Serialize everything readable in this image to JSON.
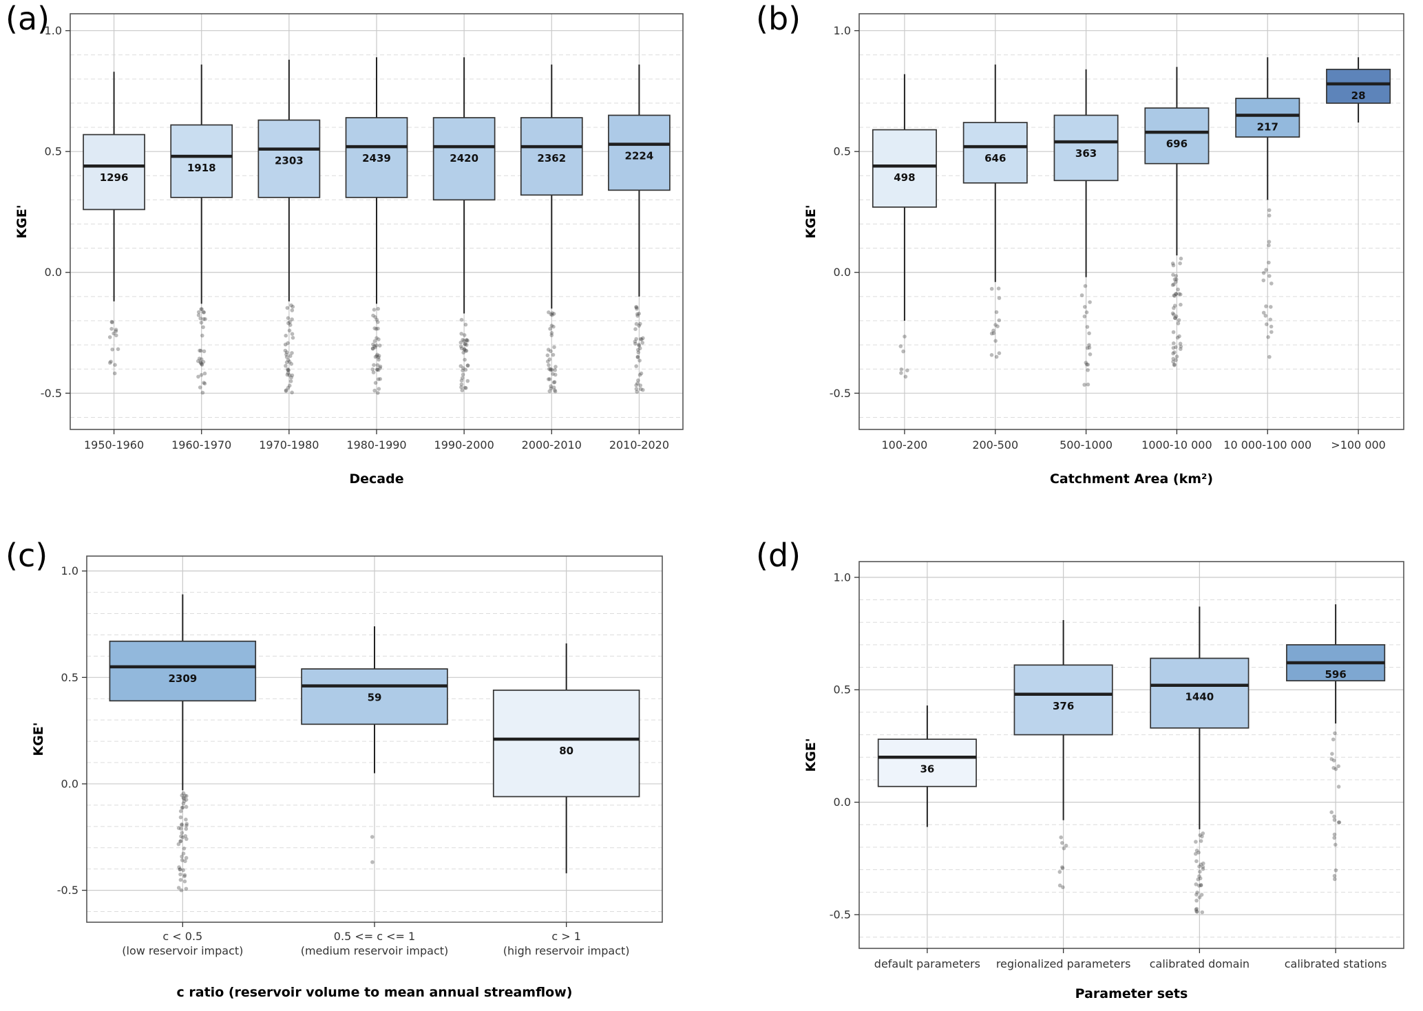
{
  "figure_background": "#ffffff",
  "chart_data": {
    "type": "boxplot",
    "shared": {
      "ylabel": "KGE'",
      "yticks": [
        -0.5,
        0.0,
        0.5,
        1.0
      ],
      "ylim": [
        -0.65,
        1.07
      ],
      "grid": "horizontal major solid, minor dashed, vertical solid per category",
      "legend": "none",
      "count_label_note": "number of stations printed below each median line"
    },
    "panels": [
      {
        "label": "(a)",
        "xlabel": "Decade",
        "ylabel": "KGE'",
        "categories": [
          "1950-1960",
          "1960-1970",
          "1970-1980",
          "1980-1990",
          "1990-2000",
          "2000-2010",
          "2010-2020"
        ],
        "boxes": [
          {
            "n": 1296,
            "q1": 0.26,
            "median": 0.44,
            "q3": 0.57,
            "whisker_low": -0.12,
            "whisker_high": 0.83,
            "fill": "#dfeaf5",
            "outliers": {
              "min": -0.44,
              "max": -0.18,
              "count": 14
            }
          },
          {
            "n": 1918,
            "q1": 0.31,
            "median": 0.48,
            "q3": 0.61,
            "whisker_low": -0.13,
            "whisker_high": 0.86,
            "fill": "#c9ddf0",
            "outliers": {
              "min": -0.5,
              "max": -0.15,
              "count": 30
            }
          },
          {
            "n": 2303,
            "q1": 0.31,
            "median": 0.51,
            "q3": 0.63,
            "whisker_low": -0.12,
            "whisker_high": 0.88,
            "fill": "#bcd4ec",
            "outliers": {
              "min": -0.5,
              "max": -0.13,
              "count": 40
            }
          },
          {
            "n": 2439,
            "q1": 0.31,
            "median": 0.52,
            "q3": 0.64,
            "whisker_low": -0.13,
            "whisker_high": 0.89,
            "fill": "#b4cfe9",
            "outliers": {
              "min": -0.5,
              "max": -0.15,
              "count": 40
            }
          },
          {
            "n": 2420,
            "q1": 0.3,
            "median": 0.52,
            "q3": 0.64,
            "whisker_low": -0.17,
            "whisker_high": 0.89,
            "fill": "#b4cfe9",
            "outliers": {
              "min": -0.5,
              "max": -0.18,
              "count": 36
            }
          },
          {
            "n": 2362,
            "q1": 0.32,
            "median": 0.52,
            "q3": 0.64,
            "whisker_low": -0.15,
            "whisker_high": 0.86,
            "fill": "#b2cde8",
            "outliers": {
              "min": -0.5,
              "max": -0.16,
              "count": 36
            }
          },
          {
            "n": 2224,
            "q1": 0.34,
            "median": 0.53,
            "q3": 0.65,
            "whisker_low": -0.1,
            "whisker_high": 0.86,
            "fill": "#adcae7",
            "outliers": {
              "min": -0.5,
              "max": -0.12,
              "count": 36
            }
          }
        ]
      },
      {
        "label": "(b)",
        "xlabel": "Catchment Area (km²)",
        "ylabel": "KGE'",
        "categories": [
          "100-200",
          "200-500",
          "500-1000",
          "1000-10 000",
          "10 000-100 000",
          ">100 000"
        ],
        "boxes": [
          {
            "n": 498,
            "q1": 0.27,
            "median": 0.44,
            "q3": 0.59,
            "whisker_low": -0.2,
            "whisker_high": 0.82,
            "fill": "#e2edf7",
            "outliers": {
              "min": -0.45,
              "max": -0.24,
              "count": 7
            }
          },
          {
            "n": 646,
            "q1": 0.37,
            "median": 0.52,
            "q3": 0.62,
            "whisker_low": -0.04,
            "whisker_high": 0.86,
            "fill": "#cadef1",
            "outliers": {
              "min": -0.38,
              "max": -0.06,
              "count": 14
            }
          },
          {
            "n": 363,
            "q1": 0.38,
            "median": 0.54,
            "q3": 0.65,
            "whisker_low": -0.02,
            "whisker_high": 0.84,
            "fill": "#bed6ed",
            "outliers": {
              "min": -0.47,
              "max": -0.05,
              "count": 18
            }
          },
          {
            "n": 696,
            "q1": 0.45,
            "median": 0.58,
            "q3": 0.68,
            "whisker_low": 0.07,
            "whisker_high": 0.85,
            "fill": "#abc9e6",
            "outliers": {
              "min": -0.4,
              "max": 0.06,
              "count": 45
            }
          },
          {
            "n": 217,
            "q1": 0.56,
            "median": 0.65,
            "q3": 0.72,
            "whisker_low": 0.3,
            "whisker_high": 0.89,
            "fill": "#93b9dd",
            "outliers": {
              "min": -0.35,
              "max": 0.28,
              "count": 20
            }
          },
          {
            "n": 28,
            "q1": 0.7,
            "median": 0.78,
            "q3": 0.84,
            "whisker_low": 0.62,
            "whisker_high": 0.89,
            "fill": "#5d84ba",
            "outliers": null
          }
        ]
      },
      {
        "label": "(c)",
        "xlabel": "c ratio (reservoir volume to mean annual streamflow)",
        "ylabel": "KGE'",
        "categories": [
          [
            "c < 0.5",
            "(low reservoir impact)"
          ],
          [
            "0.5 <= c <= 1",
            "(medium reservoir impact)"
          ],
          [
            "c > 1",
            "(high reservoir impact)"
          ]
        ],
        "boxes": [
          {
            "n": 2309,
            "q1": 0.39,
            "median": 0.55,
            "q3": 0.67,
            "whisker_low": -0.03,
            "whisker_high": 0.89,
            "fill": "#92b8dc",
            "outliers": {
              "min": -0.5,
              "max": -0.04,
              "count": 48
            }
          },
          {
            "n": 59,
            "q1": 0.28,
            "median": 0.46,
            "q3": 0.54,
            "whisker_low": 0.05,
            "whisker_high": 0.74,
            "fill": "#aecbe7",
            "outliers": {
              "min": -0.37,
              "max": -0.22,
              "count": 2
            }
          },
          {
            "n": 80,
            "q1": -0.06,
            "median": 0.21,
            "q3": 0.44,
            "whisker_low": -0.42,
            "whisker_high": 0.66,
            "fill": "#e9f1f9",
            "outliers": null
          }
        ]
      },
      {
        "label": "(d)",
        "xlabel": "Parameter sets",
        "ylabel": "KGE'",
        "categories": [
          "default parameters",
          "regionalized parameters",
          "calibrated domain",
          "calibrated stations"
        ],
        "boxes": [
          {
            "n": 36,
            "q1": 0.07,
            "median": 0.2,
            "q3": 0.28,
            "whisker_low": -0.11,
            "whisker_high": 0.43,
            "fill": "#eef4fb",
            "outliers": null
          },
          {
            "n": 376,
            "q1": 0.3,
            "median": 0.48,
            "q3": 0.61,
            "whisker_low": -0.08,
            "whisker_high": 0.81,
            "fill": "#bcd4ec",
            "outliers": {
              "min": -0.45,
              "max": -0.15,
              "count": 9
            }
          },
          {
            "n": 1440,
            "q1": 0.33,
            "median": 0.52,
            "q3": 0.64,
            "whisker_low": -0.12,
            "whisker_high": 0.87,
            "fill": "#b2cde8",
            "outliers": {
              "min": -0.5,
              "max": -0.13,
              "count": 32
            }
          },
          {
            "n": 596,
            "q1": 0.54,
            "median": 0.62,
            "q3": 0.7,
            "whisker_low": 0.35,
            "whisker_high": 0.88,
            "fill": "#7ea7d1",
            "outliers": {
              "min": -0.35,
              "max": 0.32,
              "count": 20
            }
          }
        ]
      }
    ]
  }
}
